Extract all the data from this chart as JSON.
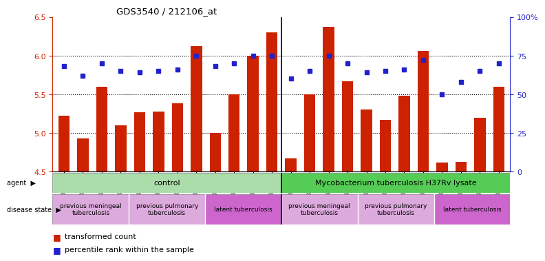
{
  "title": "GDS3540 / 212106_at",
  "samples": [
    "GSM280335",
    "GSM280341",
    "GSM280351",
    "GSM280353",
    "GSM280333",
    "GSM280339",
    "GSM280347",
    "GSM280349",
    "GSM280331",
    "GSM280337",
    "GSM280343",
    "GSM280345",
    "GSM280336",
    "GSM280342",
    "GSM280352",
    "GSM280354",
    "GSM280334",
    "GSM280340",
    "GSM280348",
    "GSM280350",
    "GSM280332",
    "GSM280338",
    "GSM280344",
    "GSM280346"
  ],
  "bar_values": [
    5.22,
    4.93,
    5.6,
    5.1,
    5.27,
    5.28,
    5.38,
    6.12,
    5.0,
    5.5,
    6.0,
    6.3,
    4.67,
    5.5,
    6.37,
    5.67,
    5.3,
    5.17,
    5.48,
    6.06,
    4.62,
    4.63,
    5.2,
    5.6
  ],
  "dot_values": [
    68,
    62,
    70,
    65,
    64,
    65,
    66,
    75,
    68,
    70,
    75,
    75,
    60,
    65,
    75,
    70,
    64,
    65,
    66,
    72,
    50,
    58,
    65,
    70
  ],
  "ylim_left": [
    4.5,
    6.5
  ],
  "ylim_right": [
    0,
    100
  ],
  "yticks_left": [
    4.5,
    5.0,
    5.5,
    6.0,
    6.5
  ],
  "yticks_right": [
    0,
    25,
    50,
    75,
    100
  ],
  "ytick_labels_right": [
    "0",
    "25",
    "50",
    "75",
    "100%"
  ],
  "bar_color": "#cc2200",
  "dot_color": "#2222cc",
  "agent_groups": [
    {
      "label": "control",
      "start": 0,
      "end": 12,
      "color": "#aaddaa"
    },
    {
      "label": "Mycobacterium tuberculosis H37Rv lysate",
      "start": 12,
      "end": 24,
      "color": "#55cc55"
    }
  ],
  "disease_groups": [
    {
      "label": "previous meningeal\ntuberculosis",
      "start": 0,
      "end": 4,
      "color": "#ddaadd"
    },
    {
      "label": "previous pulmonary\ntuberculosis",
      "start": 4,
      "end": 8,
      "color": "#ddaadd"
    },
    {
      "label": "latent tuberculosis",
      "start": 8,
      "end": 12,
      "color": "#cc66cc"
    },
    {
      "label": "previous meningeal\ntuberculosis",
      "start": 12,
      "end": 16,
      "color": "#ddaadd"
    },
    {
      "label": "previous pulmonary\ntuberculosis",
      "start": 16,
      "end": 20,
      "color": "#ddaadd"
    },
    {
      "label": "latent tuberculosis",
      "start": 20,
      "end": 24,
      "color": "#cc66cc"
    }
  ],
  "legend_items": [
    {
      "label": "transformed count",
      "color": "#cc2200"
    },
    {
      "label": "percentile rank within the sample",
      "color": "#2222cc"
    }
  ],
  "bg_color": "#ffffff",
  "tick_color_left": "#cc2200",
  "tick_color_right": "#2222cc",
  "figsize": [
    8.01,
    3.84
  ],
  "dpi": 100
}
